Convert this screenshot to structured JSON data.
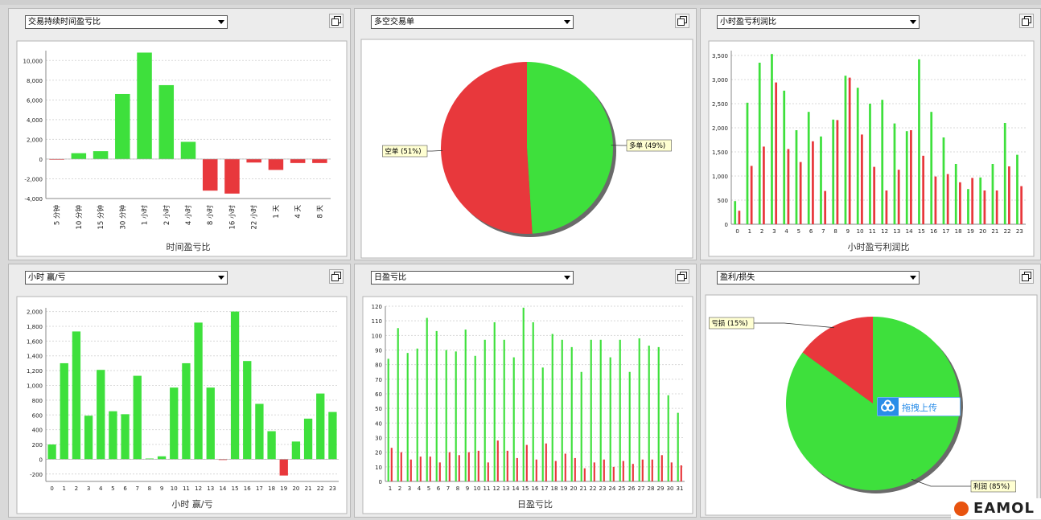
{
  "brand": {
    "logo_text": "EAMOL"
  },
  "upload_button": {
    "label": "拖拽上传",
    "icon": "cloud-upload-icon",
    "color": "#2a8de8"
  },
  "colors": {
    "green": "#3ee03c",
    "red": "#e8383c",
    "panel_bg": "#ececec"
  },
  "panels": [
    {
      "dropdown": "交易持续时间盈亏比",
      "chart_data": {
        "type": "bar",
        "categories": [
          "5 分钟",
          "10 分钟",
          "15 分钟",
          "30 分钟",
          "1 小时",
          "2 小时",
          "4 小时",
          "8 小时",
          "16 小时",
          "22 小时",
          "1 天",
          "4 天",
          "8 天"
        ],
        "values": [
          -50,
          600,
          800,
          6600,
          10800,
          7500,
          1750,
          -3200,
          -3500,
          -350,
          -1100,
          -400,
          -400
        ],
        "ylim": [
          -4000,
          11000
        ],
        "yticks": [
          "10,000",
          "8,000",
          "6,000",
          "4,000",
          "2,000",
          "0",
          "-2,000",
          "-4,000"
        ],
        "ytick_values": [
          10000,
          8000,
          6000,
          4000,
          2000,
          0,
          -2000,
          -4000
        ],
        "xlabel": "时间盈亏比",
        "grid": true
      }
    },
    {
      "dropdown": "多空交易单",
      "chart_data": {
        "type": "pie",
        "slices": [
          {
            "label": "多单 (49%)",
            "value": 49,
            "color": "#3ee03c"
          },
          {
            "label": "空单 (51%)",
            "value": 51,
            "color": "#e8383c"
          }
        ]
      }
    },
    {
      "dropdown": "小时盈亏利润比",
      "chart_data": {
        "type": "bar",
        "categories": [
          "0",
          "1",
          "2",
          "3",
          "4",
          "5",
          "6",
          "7",
          "8",
          "9",
          "10",
          "11",
          "12",
          "13",
          "14",
          "15",
          "16",
          "17",
          "18",
          "19",
          "20",
          "21",
          "22",
          "23"
        ],
        "series": [
          {
            "color": "#3ee03c",
            "values": [
              480,
              2520,
              3350,
              3530,
              2770,
              1950,
              2330,
              1820,
              2170,
              3080,
              2830,
              2500,
              2580,
              2090,
              1930,
              3420,
              2330,
              1800,
              1250,
              730,
              970,
              1250,
              2100,
              1440
            ]
          },
          {
            "color": "#e8383c",
            "values": [
              280,
              1210,
              1610,
              2940,
              1560,
              1290,
              1720,
              690,
              2160,
              3040,
              1860,
              1190,
              700,
              1130,
              1950,
              1420,
              990,
              1040,
              870,
              960,
              700,
              700,
              1200,
              790
            ]
          }
        ],
        "ylim": [
          0,
          3600
        ],
        "yticks": [
          "3,500",
          "3,000",
          "2,500",
          "2,000",
          "1,500",
          "1,000",
          "500",
          "0"
        ],
        "ytick_values": [
          3500,
          3000,
          2500,
          2000,
          1500,
          1000,
          500,
          0
        ],
        "xlabel": "小时盈亏利润比",
        "grid": true
      }
    },
    {
      "dropdown": "小时 赢/亏",
      "chart_data": {
        "type": "bar",
        "categories": [
          "0",
          "1",
          "2",
          "3",
          "4",
          "5",
          "6",
          "7",
          "8",
          "9",
          "10",
          "11",
          "12",
          "13",
          "14",
          "15",
          "16",
          "17",
          "18",
          "19",
          "20",
          "21",
          "22",
          "23"
        ],
        "values": [
          200,
          1300,
          1730,
          590,
          1210,
          650,
          610,
          1130,
          10,
          40,
          970,
          1300,
          1850,
          970,
          -10,
          2000,
          1330,
          750,
          380,
          -220,
          240,
          550,
          890,
          640
        ],
        "ylim": [
          -300,
          2050
        ],
        "yticks": [
          "2,000",
          "1,800",
          "1,600",
          "1,400",
          "1,200",
          "1,000",
          "800",
          "600",
          "400",
          "200",
          "0",
          "-200"
        ],
        "ytick_values": [
          2000,
          1800,
          1600,
          1400,
          1200,
          1000,
          800,
          600,
          400,
          200,
          0,
          -200
        ],
        "xlabel": "小时 赢/亏",
        "grid": true
      }
    },
    {
      "dropdown": "日盈亏比",
      "chart_data": {
        "type": "bar",
        "categories": [
          "1",
          "2",
          "3",
          "4",
          "5",
          "6",
          "7",
          "8",
          "9",
          "10",
          "11",
          "12",
          "13",
          "14",
          "15",
          "16",
          "17",
          "18",
          "19",
          "20",
          "21",
          "22",
          "23",
          "24",
          "25",
          "26",
          "27",
          "28",
          "29",
          "30",
          "31"
        ],
        "series": [
          {
            "color": "#3ee03c",
            "values": [
              84,
              105,
              88,
              91,
              112,
              103,
              90,
              89,
              104,
              86,
              97,
              109,
              97,
              85,
              119,
              109,
              78,
              101,
              97,
              92,
              75,
              97,
              97,
              85,
              97,
              75,
              98,
              93,
              92,
              59,
              47
            ]
          },
          {
            "color": "#e8383c",
            "values": [
              23,
              20,
              15,
              17,
              17,
              13,
              20,
              18,
              20,
              21,
              13,
              28,
              21,
              16,
              25,
              15,
              26,
              14,
              19,
              16,
              9,
              13,
              15,
              10,
              14,
              12,
              15,
              15,
              18,
              13,
              11
            ]
          }
        ],
        "ylim": [
          0,
          120
        ],
        "yticks": [
          "120",
          "110",
          "100",
          "90",
          "80",
          "70",
          "60",
          "50",
          "40",
          "30",
          "20",
          "10",
          "0"
        ],
        "ytick_values": [
          120,
          110,
          100,
          90,
          80,
          70,
          60,
          50,
          40,
          30,
          20,
          10,
          0
        ],
        "xlabel": "日盈亏比",
        "grid": true
      }
    },
    {
      "dropdown": "盈利/损失",
      "chart_data": {
        "type": "pie",
        "slices": [
          {
            "label": "利润 (85%)",
            "value": 85,
            "color": "#3ee03c"
          },
          {
            "label": "亏损 (15%)",
            "value": 15,
            "color": "#e8383c"
          }
        ]
      }
    }
  ]
}
